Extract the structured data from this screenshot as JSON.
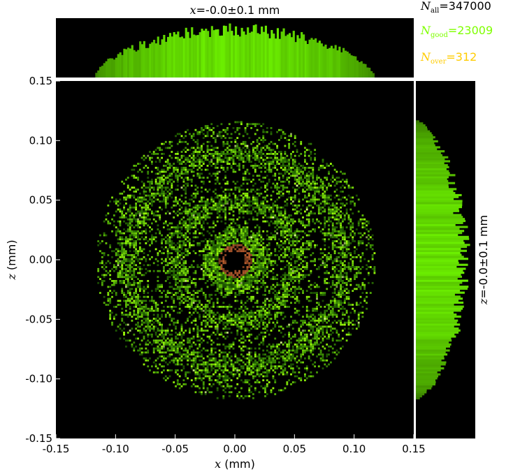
{
  "counters": {
    "all_symbol": "N",
    "all_sub": "all",
    "all_value": "=347000",
    "good_symbol": "N",
    "good_sub": "good",
    "good_value": "=23009",
    "over_symbol": "N",
    "over_sub": "over",
    "over_value": "=312"
  },
  "colors": {
    "all": "#000000",
    "good": "#7fff00",
    "over": "#ffcc00",
    "background": "#000000"
  },
  "chart_data": {
    "type": "heatmap",
    "title": "x=-0.0±0.1 mm",
    "title_var": "x",
    "title_rest": "=-0.0±0.1 mm",
    "xlabel_var": "x",
    "xlabel_unit": " (mm)",
    "ylabel_var": "z",
    "ylabel_unit": " (mm)",
    "side_label": "z=-0.0±0.1 mm",
    "side_label_var": "z",
    "side_label_rest": "=-0.0±0.1 mm",
    "xlim": [
      -0.15,
      0.15
    ],
    "ylim": [
      -0.15,
      0.15
    ],
    "x_ticks": [
      "-0.15",
      "-0.10",
      "-0.05",
      "0.00",
      "0.05",
      "0.10",
      "0.15"
    ],
    "y_ticks": [
      "0.15",
      "0.10",
      "0.05",
      "0.00",
      "-0.05",
      "-0.10",
      "-0.15"
    ],
    "x_tick_values": [
      -0.15,
      -0.1,
      -0.05,
      0.0,
      0.05,
      0.1,
      0.15
    ],
    "y_tick_values": [
      0.15,
      0.1,
      0.05,
      0.0,
      -0.05,
      -0.1,
      -0.15
    ],
    "beam_radius_mm": 0.117,
    "ring_radii_mm": [
      0.02,
      0.05,
      0.09
    ],
    "dark_center_radius_mm": 0.008,
    "grid": false
  }
}
